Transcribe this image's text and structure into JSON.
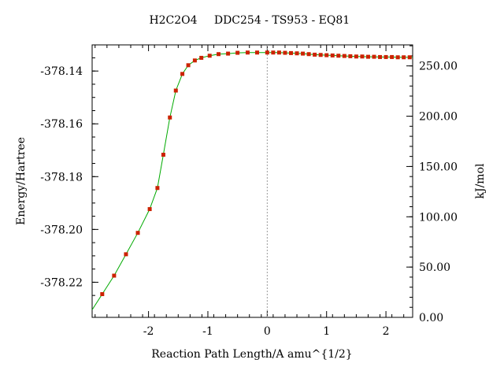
{
  "chart_data": {
    "type": "line",
    "title_parts": [
      "H2C2O4",
      "DDC254 - TS953 - EQ81"
    ],
    "xlabel": "Reaction Path Length/A amu^{1/2}",
    "ylabel": "Energy/Hartree",
    "y2label": "kJ/mol",
    "xlim": [
      -2.95,
      2.45
    ],
    "ylim": [
      -378.2333,
      -378.1301
    ],
    "y2lim": [
      0.0,
      270.9
    ],
    "x_ticks": [
      "-2",
      "-1",
      "0",
      "1",
      "2"
    ],
    "x_tick_values": [
      -2,
      -1,
      0,
      1,
      2
    ],
    "y_ticks": [
      "-378.14",
      "-378.16",
      "-378.18",
      "-378.20",
      "-378.22"
    ],
    "y_tick_values": [
      -378.14,
      -378.16,
      -378.18,
      -378.2,
      -378.22
    ],
    "y2_ticks": [
      "250.00",
      "200.00",
      "150.00",
      "100.00",
      "50.00",
      "0.00"
    ],
    "y2_tick_values": [
      250,
      200,
      150,
      100,
      50,
      0
    ],
    "vline_x": 0,
    "line_color": "#00aa00",
    "marker_color": "#cc2200",
    "series": [
      {
        "x": [
          -2.78,
          -2.58,
          -2.38,
          -2.18,
          -1.98,
          -1.85,
          -1.75,
          -1.64,
          -1.54,
          -1.43,
          -1.33,
          -1.22,
          -1.11,
          -0.97,
          -0.82,
          -0.66,
          -0.5,
          -0.33,
          -0.17,
          0.0,
          0.1,
          0.2,
          0.3,
          0.4,
          0.5,
          0.6,
          0.7,
          0.8,
          0.9,
          1.0,
          1.1,
          1.2,
          1.3,
          1.4,
          1.5,
          1.6,
          1.7,
          1.8,
          1.9,
          2.0,
          2.1,
          2.2,
          2.3,
          2.4
        ],
        "y": [
          -378.2245,
          -378.2175,
          -378.2094,
          -378.2013,
          -378.1923,
          -378.1843,
          -378.1717,
          -378.1576,
          -378.1474,
          -378.1411,
          -378.1378,
          -378.136,
          -378.135,
          -378.1342,
          -378.1336,
          -378.1334,
          -378.1331,
          -378.133,
          -378.133,
          -378.133,
          -378.133,
          -378.133,
          -378.1331,
          -378.1332,
          -378.1333,
          -378.1334,
          -378.1336,
          -378.1338,
          -378.1339,
          -378.134,
          -378.1341,
          -378.1342,
          -378.1343,
          -378.1344,
          -378.1345,
          -378.1345,
          -378.1346,
          -378.1346,
          -378.1347,
          -378.1347,
          -378.1347,
          -378.1348,
          -378.1348,
          -378.1348
        ]
      }
    ]
  }
}
